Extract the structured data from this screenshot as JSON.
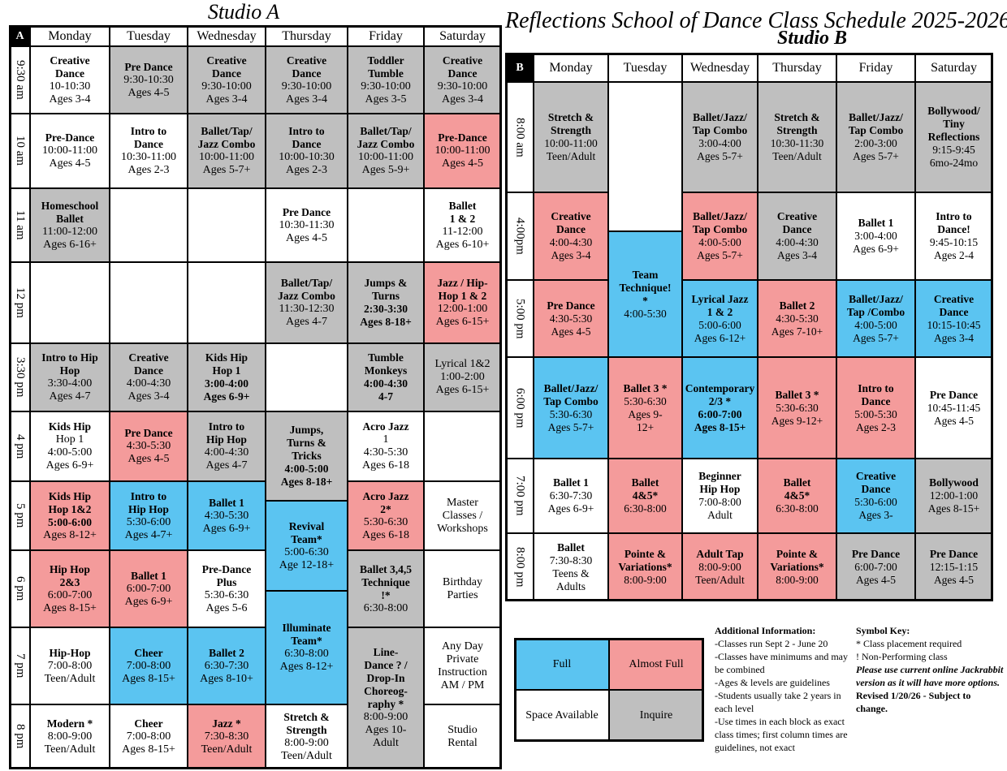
{
  "title": "Reflections School of Dance Class Schedule 2025-2026",
  "studio_a": {
    "title": "Studio A",
    "corner": "A",
    "days": [
      "Monday",
      "Tuesday",
      "Wednesday",
      "Thursday",
      "Friday",
      "Saturday"
    ],
    "times": [
      "9:30 am",
      "10 am",
      "11 am",
      "12 pm",
      "3:30 pm",
      "4 pm",
      "5 pm",
      "6 pm",
      "7 pm",
      "8 pm"
    ],
    "cells": [
      {
        "color": "#ffffff",
        "lines": [
          "Creative",
          "Dance",
          "10-10:30",
          "Ages 3-4"
        ]
      },
      {
        "color": "#bfbfbf",
        "lines": [
          "Pre Dance",
          "9:30-10:30",
          "Ages 4-5"
        ]
      },
      {
        "color": "#bfbfbf",
        "lines": [
          "Creative",
          "Dance",
          "9:30-10:00",
          "Ages 3-4"
        ]
      },
      {
        "color": "#bfbfbf",
        "lines": [
          "Creative",
          "Dance",
          "9:30-10:00",
          "Ages 3-4"
        ]
      },
      {
        "color": "#bfbfbf",
        "lines": [
          "Toddler",
          "Tumble",
          "9:30-10:00",
          "Ages 3-5"
        ]
      },
      {
        "color": "#bfbfbf",
        "lines": [
          "Creative",
          "Dance",
          "9:30-10:00",
          "Ages 3-4"
        ]
      },
      {
        "color": "#ffffff",
        "lines": [
          "Pre-Dance",
          "10:00-11:00",
          "Ages 4-5"
        ]
      },
      {
        "color": "#ffffff",
        "lines": [
          "Intro to",
          "Dance",
          "10:30-11:00",
          "Ages 2-3"
        ]
      },
      {
        "color": "#bfbfbf",
        "lines": [
          "Ballet/Tap/",
          "Jazz Combo",
          "10:00-11:00",
          "Ages 5-7+"
        ]
      },
      {
        "color": "#bfbfbf",
        "lines": [
          "Intro to",
          "Dance",
          "10:00-10:30",
          "Ages 2-3"
        ]
      },
      {
        "color": "#bfbfbf",
        "lines": [
          "Ballet/Tap/",
          "Jazz Combo",
          "10:00-11:00",
          "Ages 5-9+"
        ]
      },
      {
        "color": "#f49b9b",
        "lines": [
          "Pre-Dance",
          "10:00-11:00",
          "Ages 4-5"
        ]
      },
      {
        "color": "#bfbfbf",
        "lines": [
          "Homeschool",
          "Ballet",
          "11:00-12:00",
          "Ages 6-16+"
        ]
      },
      {
        "color": "#ffffff",
        "lines": []
      },
      {
        "color": "#ffffff",
        "lines": []
      },
      {
        "color": "#ffffff",
        "lines": [
          "Pre Dance",
          "10:30-11:30",
          "Ages 4-5"
        ]
      },
      {
        "color": "#ffffff",
        "lines": []
      },
      {
        "color": "#ffffff",
        "lines": [
          "Ballet",
          "1 & 2",
          "11-12:00",
          "Ages 6-10+"
        ]
      },
      {
        "color": "#ffffff",
        "lines": []
      },
      {
        "color": "#ffffff",
        "lines": []
      },
      {
        "color": "#ffffff",
        "lines": []
      },
      {
        "color": "#bfbfbf",
        "lines": [
          "Ballet/Tap/",
          "Jazz Combo",
          "11:30-12:30",
          "Ages 4-7"
        ]
      },
      {
        "color": "#bfbfbf",
        "lines": [
          "Jumps &",
          "Turns",
          "2:30-3:30",
          "Ages 8-18+"
        ]
      },
      {
        "color": "#f49b9b",
        "lines": [
          "Jazz / Hip-",
          "Hop 1 & 2",
          "12:00-1:00",
          "Ages 6-15+"
        ]
      },
      {
        "color": "#bfbfbf",
        "lines": [
          "Intro to Hip",
          "Hop",
          "3:30-4:00",
          "Ages 4-7"
        ]
      },
      {
        "color": "#bfbfbf",
        "lines": [
          "Creative",
          "Dance",
          "4:00-4:30",
          "Ages 3-4"
        ]
      },
      {
        "color": "#bfbfbf",
        "lines": [
          "Kids Hip",
          "Hop 1",
          "3:00-4:00",
          "Ages 6-9+"
        ]
      },
      {
        "color": "#ffffff",
        "lines": []
      },
      {
        "color": "#bfbfbf",
        "lines": [
          "Tumble",
          "Monkeys",
          "4:00-4:30",
          "4-7"
        ]
      },
      {
        "color": "#bfbfbf",
        "lines": [
          "Lyrical 1&2",
          "1:00-2:00",
          "Ages 6-15+"
        ]
      },
      {
        "color": "#ffffff",
        "lines": [
          "Kids Hip",
          "Hop 1",
          "4:00-5:00",
          "Ages 6-9+"
        ]
      },
      {
        "color": "#f49b9b",
        "lines": [
          "Pre Dance",
          "4:30-5:30",
          "Ages 4-5"
        ]
      },
      {
        "color": "#bfbfbf",
        "lines": [
          "Intro to",
          "Hip Hop",
          "4:00-4:30",
          "Ages 4-7"
        ]
      },
      {
        "color": "#bfbfbf",
        "lines": [
          "Jumps,",
          "Turns &",
          "Tricks",
          "4:00-5:00",
          "Ages 8-18+"
        ]
      },
      {
        "color": "#ffffff",
        "lines": [
          "Acro Jazz",
          "1",
          "4:30-5:30",
          "Ages 6-18"
        ]
      },
      {
        "color": "#ffffff",
        "lines": []
      },
      {
        "color": "#f49b9b",
        "lines": [
          "Kids Hip",
          "Hop 1&2",
          "5:00-6:00",
          "Ages 8-12+"
        ]
      },
      {
        "color": "#5bc4f1",
        "lines": [
          "Intro to",
          "Hip Hop",
          "5:30-6:00",
          "Ages 4-7+"
        ]
      },
      {
        "color": "#5bc4f1",
        "lines": [
          "Ballet 1",
          "4:30-5:30",
          "Ages 6-9+"
        ]
      },
      {
        "color": "#5bc4f1",
        "lines": [
          "Revival",
          "Team*",
          "5:00-6:30",
          "Age 12-18+"
        ]
      },
      {
        "color": "#f49b9b",
        "lines": [
          "Acro Jazz",
          "2*",
          "5:30-6:30",
          "Ages 6-18"
        ]
      },
      {
        "color": "#ffffff",
        "lines": [
          "Master",
          "Classes /",
          "Workshops"
        ]
      },
      {
        "color": "#f49b9b",
        "lines": [
          "Hip Hop",
          "2&3",
          "6:00-7:00",
          "Ages 8-15+"
        ]
      },
      {
        "color": "#f49b9b",
        "lines": [
          "Ballet 1",
          "6:00-7:00",
          "Ages 6-9+"
        ]
      },
      {
        "color": "#ffffff",
        "lines": [
          "Pre-Dance",
          "Plus",
          "5:30-6:30",
          "Ages 5-6"
        ]
      },
      {
        "color": "#5bc4f1",
        "lines": [
          "Illuminate",
          "Team*",
          "6:30-8:00",
          "Ages 8-12+"
        ]
      },
      {
        "color": "#bfbfbf",
        "lines": [
          "Ballet 3,4,5",
          "Technique",
          "!*",
          "6:30-8:00"
        ]
      },
      {
        "color": "#ffffff",
        "lines": [
          "Birthday",
          "Parties"
        ]
      },
      {
        "color": "#ffffff",
        "lines": [
          "Hip-Hop",
          "7:00-8:00",
          "Teen/Adult"
        ]
      },
      {
        "color": "#5bc4f1",
        "lines": [
          "Cheer",
          "7:00-8:00",
          "Ages 8-15+"
        ]
      },
      {
        "color": "#5bc4f1",
        "lines": [
          "Ballet 2",
          "6:30-7:30",
          "Ages 8-10+"
        ]
      },
      {
        "color": "#bfbfbf",
        "lines": [
          "Line-",
          "Dance ? /",
          "Drop-In",
          "Choreog-",
          "raphy *",
          "8:00-9:00",
          "Ages 10-",
          "Adult"
        ]
      },
      {
        "color": "#ffffff",
        "lines": [
          "Any Day",
          "Private",
          "Instruction",
          "AM / PM"
        ]
      },
      {
        "color": "#ffffff",
        "lines": [
          "Modern *",
          "8:00-9:00",
          "Teen/Adult"
        ]
      },
      {
        "color": "#ffffff",
        "lines": [
          "Cheer",
          "7:00-8:00",
          "Ages 8-15+"
        ]
      },
      {
        "color": "#f49b9b",
        "lines": [
          "Jazz *",
          "7:30-8:30",
          "Teen/Adult"
        ]
      },
      {
        "color": "#ffffff",
        "lines": [
          "Stretch &",
          "Strength",
          "8:00-9:00",
          "Teen/Adult"
        ]
      },
      {
        "color": "#ffffff",
        "lines": [
          "Studio",
          "Rental"
        ]
      }
    ]
  },
  "studio_b": {
    "title": "Studio B",
    "corner": "B",
    "days": [
      "Monday",
      "Tuesday",
      "Wednesday",
      "Thursday",
      "Friday",
      "Saturday"
    ],
    "times": [
      "8:00 am",
      "4:00pm",
      "5:00 pm",
      "6:00 pm",
      "7:00 pm",
      "8:00 pm"
    ],
    "cells": [
      {
        "color": "#bfbfbf",
        "lines": [
          "Stretch &",
          "Strength",
          "10:00-11:00",
          "Teen/Adult"
        ]
      },
      {
        "color": "#ffffff",
        "lines": []
      },
      {
        "color": "#bfbfbf",
        "lines": [
          "Ballet/Jazz/",
          "Tap Combo",
          "3:00-4:00",
          "Ages 5-7+"
        ]
      },
      {
        "color": "#bfbfbf",
        "lines": [
          "Stretch &",
          "Strength",
          "10:30-11:30",
          "Teen/Adult"
        ]
      },
      {
        "color": "#bfbfbf",
        "lines": [
          "Ballet/Jazz/",
          "Tap Combo",
          "2:00-3:00",
          "Ages 5-7+"
        ]
      },
      {
        "color": "#bfbfbf",
        "lines": [
          "Bollywood/",
          "Tiny",
          "Reflections",
          "9:15-9:45",
          "6mo-24mo"
        ]
      },
      {
        "color": "#f49b9b",
        "lines": [
          "Creative",
          "Dance",
          "4:00-4:30",
          "Ages 3-4"
        ]
      },
      {
        "color": "#f49b9b",
        "lines": [
          "Ballet/Jazz/",
          "Tap Combo",
          "4:00-5:00",
          "Ages 5-7+"
        ]
      },
      {
        "color": "#bfbfbf",
        "lines": [
          "Creative",
          "Dance",
          "4:00-4:30",
          "Ages 3-4"
        ]
      },
      {
        "color": "#ffffff",
        "lines": [
          "Ballet 1",
          "3:00-4:00",
          "Ages 6-9+"
        ]
      },
      {
        "color": "#ffffff",
        "lines": [
          "Intro to",
          "Dance!",
          "9:45-10:15",
          "Ages 2-4"
        ]
      },
      {
        "color": "#5bc4f1",
        "lines": [
          "Team",
          "Technique!",
          "*",
          "4:00-5:30"
        ]
      },
      {
        "color": "#f49b9b",
        "lines": [
          "Pre Dance",
          "4:30-5:30",
          "Ages 4-5"
        ]
      },
      {
        "color": "#5bc4f1",
        "lines": [
          "Lyrical Jazz",
          "1 & 2",
          "5:00-6:00",
          "Ages 6-12+"
        ]
      },
      {
        "color": "#f49b9b",
        "lines": [
          "Ballet 2",
          "4:30-5:30",
          "Ages 7-10+"
        ]
      },
      {
        "color": "#5bc4f1",
        "lines": [
          "Ballet/Jazz/",
          "Tap /Combo",
          "4:00-5:00",
          "Ages 5-7+"
        ]
      },
      {
        "color": "#5bc4f1",
        "lines": [
          "Creative",
          "Dance",
          "10:15-10:45",
          "Ages 3-4"
        ]
      },
      {
        "color": "#5bc4f1",
        "lines": [
          "Ballet/Jazz/",
          "Tap Combo",
          "5:30-6:30",
          "Ages 5-7+"
        ]
      },
      {
        "color": "#f49b9b",
        "lines": [
          "Ballet 3 *",
          "5:30-6:30",
          "Ages 9-",
          "12+"
        ]
      },
      {
        "color": "#5bc4f1",
        "lines": [
          "Contemporary",
          "2/3 *",
          "6:00-7:00",
          "Ages 8-15+"
        ]
      },
      {
        "color": "#f49b9b",
        "lines": [
          "Ballet 3 *",
          "5:30-6:30",
          "Ages 9-12+"
        ]
      },
      {
        "color": "#f49b9b",
        "lines": [
          "Intro to",
          "Dance",
          "5:00-5:30",
          "Ages 2-3"
        ]
      },
      {
        "color": "#ffffff",
        "lines": [
          "Pre Dance",
          "10:45-11:45",
          "Ages 4-5"
        ]
      },
      {
        "color": "#ffffff",
        "lines": [
          "Ballet 1",
          "6:30-7:30",
          "Ages 6-9+"
        ]
      },
      {
        "color": "#f49b9b",
        "lines": [
          "Ballet",
          "4&5*",
          "6:30-8:00"
        ]
      },
      {
        "color": "#ffffff",
        "lines": [
          "Beginner",
          "Hip Hop",
          "7:00-8:00",
          "Adult"
        ]
      },
      {
        "color": "#f49b9b",
        "lines": [
          "Ballet",
          "4&5*",
          "6:30-8:00"
        ]
      },
      {
        "color": "#5bc4f1",
        "lines": [
          "Creative",
          "Dance",
          "5:30-6:00",
          "Ages 3-"
        ]
      },
      {
        "color": "#bfbfbf",
        "lines": [
          "Bollywood",
          "12:00-1:00",
          "Ages 8-15+"
        ]
      },
      {
        "color": "#ffffff",
        "lines": [
          "Ballet",
          "7:30-8:30",
          "Teens &",
          "Adults"
        ]
      },
      {
        "color": "#f49b9b",
        "lines": [
          "Pointe &",
          "Variations*",
          "8:00-9:00"
        ]
      },
      {
        "color": "#f49b9b",
        "lines": [
          "Adult Tap",
          "8:00-9:00",
          "Teen/Adult"
        ]
      },
      {
        "color": "#f49b9b",
        "lines": [
          "Pointe &",
          "Variations*",
          "8:00-9:00"
        ]
      },
      {
        "color": "#bfbfbf",
        "lines": [
          "Pre Dance",
          "6:00-7:00",
          "Ages 4-5"
        ]
      },
      {
        "color": "#bfbfbf",
        "lines": [
          "Pre Dance",
          "12:15-1:15",
          "Ages 4-5"
        ]
      }
    ]
  },
  "legend": [
    {
      "label": "Full",
      "color": "#5bc4f1"
    },
    {
      "label": "Almost Full",
      "color": "#f49b9b"
    },
    {
      "label": "Space Available",
      "color": "#ffffff"
    },
    {
      "label": "Inquire",
      "color": "#bfbfbf"
    }
  ],
  "additional_info": {
    "title": "Additional Information:",
    "items": [
      "-Classes run Sept 2 - June 20",
      "-Classes have minimums and may be combined",
      "-Ages & levels are guidelines",
      "-Students usually take 2 years in each level",
      "-Use times in each block as exact class times; first column times are guidelines, not exact"
    ]
  },
  "symbol_key": {
    "title": "Symbol Key:",
    "items": [
      "* Class placement required",
      "! Non-Performing class"
    ],
    "note": "Please use current online Jackrabbit version as it will have more options.",
    "revised": "Revised 1/20/26 - Subject to change."
  }
}
